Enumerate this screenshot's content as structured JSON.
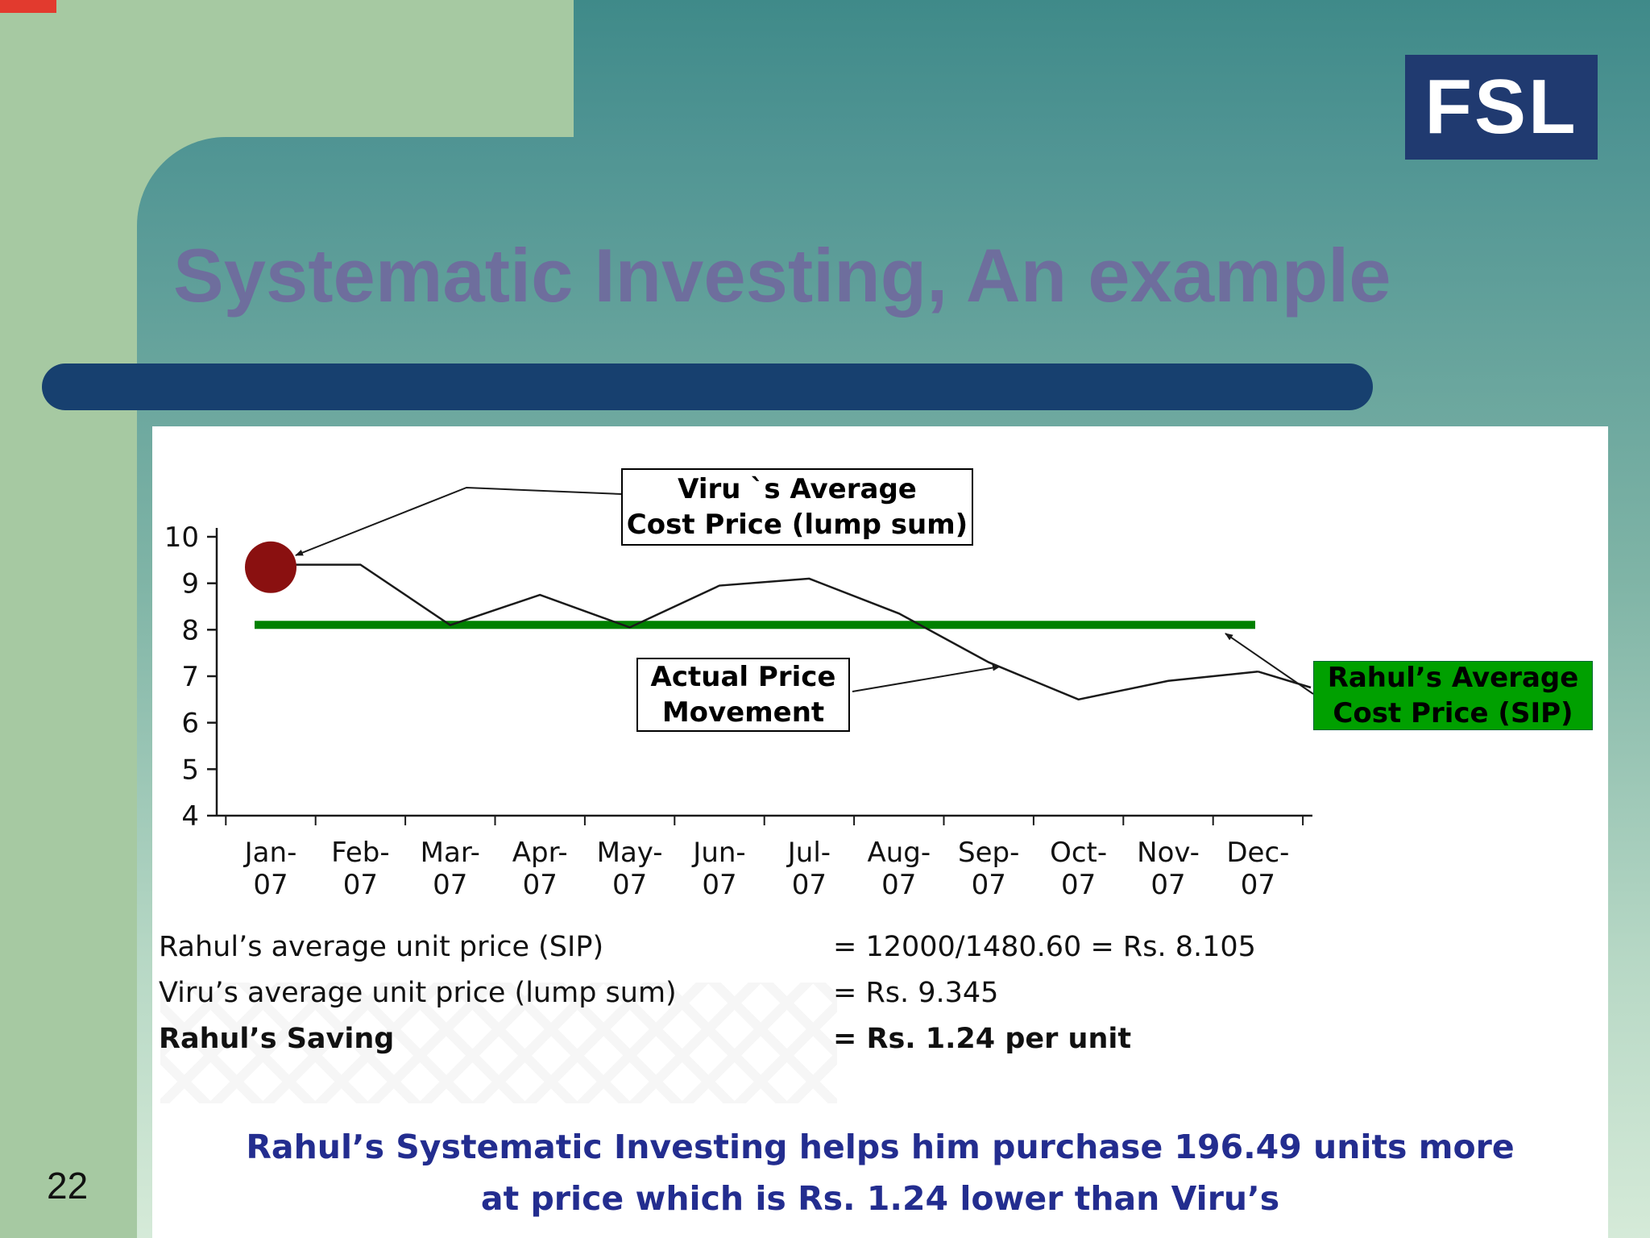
{
  "slide": {
    "logo": "FSL",
    "title": "Systematic Investing, An example",
    "page_number": "22"
  },
  "chart_data": {
    "type": "line",
    "title": "",
    "categories": [
      "Jan-07",
      "Feb-07",
      "Mar-07",
      "Apr-07",
      "May-07",
      "Jun-07",
      "Jul-07",
      "Aug-07",
      "Sep-07",
      "Oct-07",
      "Nov-07",
      "Dec-07"
    ],
    "ylim": [
      4,
      10
    ],
    "yticks": [
      4,
      5,
      6,
      7,
      8,
      9,
      10
    ],
    "grid": false,
    "series": [
      {
        "name": "Actual Price Movement",
        "color": "#1a1a1a",
        "values": [
          9.4,
          9.4,
          8.1,
          8.75,
          8.05,
          8.95,
          9.1,
          8.35,
          7.3,
          6.5,
          6.9,
          7.1
        ]
      }
    ],
    "reference_line": {
      "name": "Rahul’s Average Cost Price (SIP)",
      "value": 8.105,
      "color": "#008000"
    },
    "marker_point": {
      "name": "Viru’s Average Cost Price (lump sum)",
      "category": "Jan-07",
      "value": 9.345,
      "color": "#8a1010"
    }
  },
  "chart_labels": {
    "viru_box": {
      "line1": "Viru `s Average",
      "line2": "Cost Price (lump sum)"
    },
    "actual_box": {
      "line1": "Actual Price",
      "line2": "Movement"
    },
    "rahul_box": {
      "line1": "Rahul’s Average",
      "line2": "Cost Price (SIP)"
    }
  },
  "calculations": {
    "rows": [
      {
        "label": "Rahul’s average unit price (SIP)",
        "value": "= 12000/1480.60 = Rs. 8.105"
      },
      {
        "label": "Viru’s average unit price (lump sum)",
        "value": "= Rs. 9.345"
      },
      {
        "label": "Rahul’s Saving",
        "value": "= Rs. 1.24 per unit"
      }
    ]
  },
  "footer": {
    "line1": "Rahul’s Systematic Investing helps him purchase 196.49 units more",
    "line2": "at price which is Rs. 1.24 lower than Viru’s"
  },
  "colors": {
    "title": "#6e6e9d",
    "title_bar": "#17406f",
    "logo_bg": "#203a70",
    "reference_green": "#008000",
    "rahul_box_green": "#00a000",
    "marker_red": "#8a1010",
    "footer_text": "#232d8f",
    "corner_accent_red": "#e23a2e"
  }
}
